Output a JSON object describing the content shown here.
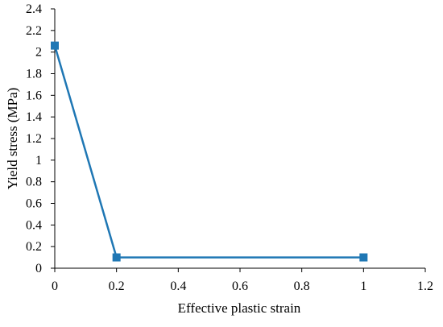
{
  "chart_data": {
    "type": "line",
    "title": "",
    "xlabel": "Effective plastic strain",
    "ylabel": "Yield stress (MPa)",
    "xlim": [
      0,
      1.2
    ],
    "ylim": [
      0,
      2.4
    ],
    "x_ticks": [
      "0",
      "0.2",
      "0.4",
      "0.6",
      "0.8",
      "1",
      "1.2"
    ],
    "y_ticks": [
      "0",
      "0.2",
      "0.4",
      "0.6",
      "0.8",
      "1",
      "1.2",
      "1.4",
      "1.6",
      "1.8",
      "2",
      "2.2",
      "2.4"
    ],
    "grid": false,
    "legend": "none",
    "series": [
      {
        "x": [
          0,
          0.2,
          1
        ],
        "y": [
          2.06,
          0.1,
          0.1
        ],
        "color": "#1f77b4",
        "marker": "square"
      }
    ]
  }
}
